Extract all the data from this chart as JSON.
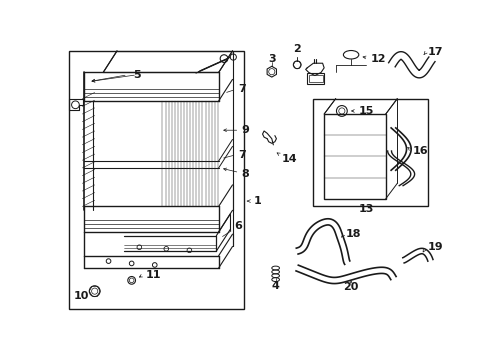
{
  "bg_color": "#ffffff",
  "line_color": "#1a1a1a",
  "lw_main": 1.0,
  "lw_thin": 0.5,
  "lw_med": 0.8
}
